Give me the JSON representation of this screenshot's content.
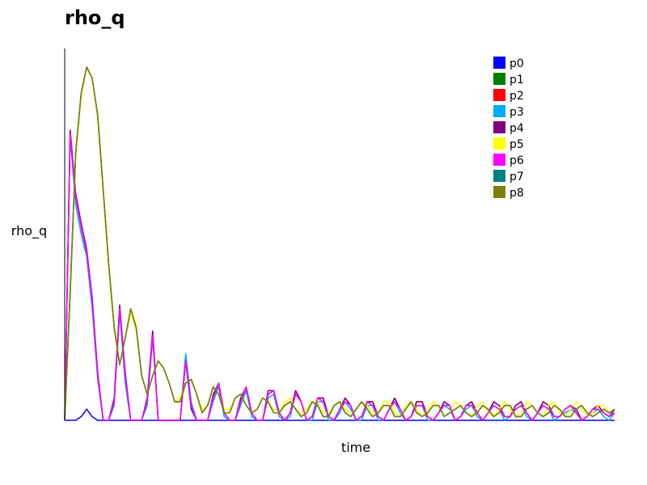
{
  "chart_data": {
    "type": "line",
    "title": "rho_q",
    "xlabel": "time",
    "ylabel": "rho_q",
    "xlim": [
      0,
      100
    ],
    "ylim": [
      0,
      1
    ],
    "grid": false,
    "legend_position": "top-right",
    "x": [
      0,
      1,
      2,
      3,
      4,
      5,
      6,
      7,
      8,
      9,
      10,
      11,
      12,
      13,
      14,
      15,
      16,
      17,
      18,
      19,
      20,
      21,
      22,
      23,
      24,
      25,
      26,
      27,
      28,
      29,
      30,
      31,
      32,
      33,
      34,
      35,
      36,
      37,
      38,
      39,
      40,
      41,
      42,
      43,
      44,
      45,
      46,
      47,
      48,
      49,
      50,
      51,
      52,
      53,
      54,
      55,
      56,
      57,
      58,
      59,
      60,
      61,
      62,
      63,
      64,
      65,
      66,
      67,
      68,
      69,
      70,
      71,
      72,
      73,
      74,
      75,
      76,
      77,
      78,
      79,
      80,
      81,
      82,
      83,
      84,
      85,
      86,
      87,
      88,
      89,
      90,
      91,
      92,
      93,
      94,
      95,
      96,
      97,
      98,
      99,
      100
    ],
    "series": [
      {
        "name": "p0",
        "color": "#0000ff",
        "values": [
          0,
          0,
          0,
          0.01,
          0.03,
          0.01,
          0,
          0,
          0,
          0,
          0,
          0,
          0,
          0,
          0,
          0,
          0,
          0,
          0,
          0,
          0,
          0,
          0,
          0,
          0,
          0,
          0,
          0,
          0,
          0,
          0,
          0,
          0,
          0,
          0,
          0,
          0,
          0,
          0,
          0,
          0,
          0,
          0,
          0,
          0,
          0,
          0,
          0,
          0,
          0,
          0,
          0,
          0,
          0,
          0,
          0,
          0,
          0,
          0,
          0,
          0,
          0,
          0,
          0,
          0,
          0,
          0,
          0,
          0,
          0,
          0,
          0,
          0,
          0,
          0,
          0,
          0,
          0,
          0,
          0,
          0,
          0,
          0,
          0,
          0,
          0,
          0,
          0,
          0,
          0,
          0,
          0,
          0,
          0,
          0,
          0,
          0,
          0,
          0,
          0,
          0
        ]
      },
      {
        "name": "p1",
        "color": "#008000",
        "values": [
          0,
          0.35,
          0.72,
          0.88,
          0.95,
          0.92,
          0.82,
          0.62,
          0.42,
          0.25,
          0.15,
          0.22,
          0.3,
          0.25,
          0.12,
          0.07,
          0.12,
          0.16,
          0.14,
          0.1,
          0.05,
          0.05,
          0.1,
          0.11,
          0.07,
          0.02,
          0.04,
          0.09,
          0.07,
          0.02,
          0.02,
          0.06,
          0.07,
          0.04,
          0.02,
          0.03,
          0.06,
          0.05,
          0.02,
          0.02,
          0.04,
          0.05,
          0.03,
          0.01,
          0.02,
          0.05,
          0.04,
          0.01,
          0.01,
          0.04,
          0.05,
          0.02,
          0.01,
          0.03,
          0.05,
          0.03,
          0.01,
          0.02,
          0.04,
          0.04,
          0.01,
          0.01,
          0.03,
          0.05,
          0.02,
          0.01,
          0.02,
          0.04,
          0.04,
          0.01,
          0.02,
          0.03,
          0.04,
          0.02,
          0.01,
          0.02,
          0.04,
          0.03,
          0.01,
          0.02,
          0.04,
          0.04,
          0.01,
          0.01,
          0.03,
          0.04,
          0.02,
          0.01,
          0.02,
          0.04,
          0.03,
          0.01,
          0.01,
          0.03,
          0.04,
          0.02,
          0.01,
          0.02,
          0.03,
          0.02,
          0.03
        ]
      },
      {
        "name": "p2",
        "color": "#ff0000",
        "values": [
          0,
          0.78,
          0.6,
          0.52,
          0.45,
          0.32,
          0.12,
          0,
          0,
          0.05,
          0.3,
          0.12,
          0,
          0,
          0,
          0.05,
          0.24,
          0,
          0,
          0,
          0,
          0,
          0.16,
          0.04,
          0,
          0,
          0,
          0.06,
          0.1,
          0.02,
          0,
          0,
          0.05,
          0.09,
          0.02,
          0,
          0,
          0.07,
          0.08,
          0.02,
          0,
          0.02,
          0.08,
          0.05,
          0,
          0.01,
          0.06,
          0.06,
          0.01,
          0,
          0.03,
          0.06,
          0.04,
          0,
          0.01,
          0.05,
          0.05,
          0.01,
          0,
          0.03,
          0.06,
          0.03,
          0,
          0.01,
          0.05,
          0.05,
          0.01,
          0,
          0.02,
          0.05,
          0.04,
          0,
          0.01,
          0.04,
          0.05,
          0.02,
          0,
          0.02,
          0.05,
          0.04,
          0.01,
          0.01,
          0.04,
          0.05,
          0.02,
          0,
          0.02,
          0.05,
          0.04,
          0.01,
          0.01,
          0.03,
          0.04,
          0.03,
          0,
          0.01,
          0.03,
          0.04,
          0.02,
          0.01,
          0.03
        ]
      },
      {
        "name": "p3",
        "color": "#00aaff",
        "values": [
          0,
          0.76,
          0.58,
          0.5,
          0.44,
          0.3,
          0.11,
          0,
          0,
          0.04,
          0.29,
          0.1,
          0,
          0,
          0,
          0.04,
          0.22,
          0,
          0,
          0,
          0,
          0,
          0.18,
          0.05,
          0,
          0,
          0,
          0.05,
          0.09,
          0.01,
          0,
          0,
          0.04,
          0.08,
          0.01,
          0,
          0,
          0.06,
          0.07,
          0.01,
          0,
          0.01,
          0.07,
          0.05,
          0,
          0,
          0.05,
          0.05,
          0,
          0,
          0.02,
          0.05,
          0.03,
          0,
          0,
          0.04,
          0.04,
          0,
          0,
          0.03,
          0.05,
          0.02,
          0,
          0.01,
          0.04,
          0.04,
          0,
          0,
          0.02,
          0.04,
          0.03,
          0,
          0.01,
          0.03,
          0.04,
          0.01,
          0,
          0.02,
          0.04,
          0.03,
          0,
          0.01,
          0.03,
          0.04,
          0.01,
          0,
          0.02,
          0.04,
          0.03,
          0,
          0.01,
          0.02,
          0.03,
          0.02,
          0,
          0.01,
          0.02,
          0.03,
          0.01,
          0,
          0.02
        ]
      },
      {
        "name": "p4",
        "color": "#800080",
        "values": [
          0,
          0.78,
          0.61,
          0.53,
          0.46,
          0.33,
          0.13,
          0,
          0,
          0.06,
          0.31,
          0.13,
          0,
          0,
          0,
          0.06,
          0.24,
          0,
          0,
          0,
          0,
          0,
          0.16,
          0.03,
          0,
          0,
          0,
          0.07,
          0.1,
          0.02,
          0,
          0,
          0.06,
          0.09,
          0.02,
          0,
          0,
          0.08,
          0.08,
          0.02,
          0,
          0.02,
          0.08,
          0.05,
          0,
          0.01,
          0.06,
          0.06,
          0.01,
          0,
          0.03,
          0.06,
          0.04,
          0,
          0.01,
          0.05,
          0.05,
          0.01,
          0,
          0.03,
          0.06,
          0.03,
          0,
          0.01,
          0.05,
          0.05,
          0.01,
          0,
          0.02,
          0.05,
          0.04,
          0,
          0.01,
          0.04,
          0.05,
          0.02,
          0,
          0.02,
          0.05,
          0.04,
          0.01,
          0.01,
          0.04,
          0.05,
          0.02,
          0,
          0.02,
          0.05,
          0.04,
          0.01,
          0.01,
          0.03,
          0.04,
          0.03,
          0,
          0.01,
          0.03,
          0.04,
          0.02,
          0.01,
          0.03
        ]
      },
      {
        "name": "p5",
        "color": "#ffff00",
        "values": [
          0,
          0.34,
          0.71,
          0.87,
          0.95,
          0.92,
          0.81,
          0.61,
          0.41,
          0.24,
          0.15,
          0.22,
          0.29,
          0.24,
          0.12,
          0.07,
          0.12,
          0.16,
          0.14,
          0.1,
          0.05,
          0.06,
          0.1,
          0.11,
          0.07,
          0.03,
          0.04,
          0.09,
          0.07,
          0.03,
          0.03,
          0.06,
          0.07,
          0.04,
          0.02,
          0.03,
          0.06,
          0.05,
          0.03,
          0.02,
          0.05,
          0.06,
          0.03,
          0.02,
          0.03,
          0.05,
          0.05,
          0.02,
          0.02,
          0.04,
          0.05,
          0.03,
          0.02,
          0.03,
          0.05,
          0.04,
          0.02,
          0.02,
          0.05,
          0.05,
          0.02,
          0.01,
          0.04,
          0.05,
          0.03,
          0.01,
          0.03,
          0.05,
          0.04,
          0.01,
          0.02,
          0.05,
          0.04,
          0.02,
          0.01,
          0.04,
          0.05,
          0.02,
          0.01,
          0.03,
          0.05,
          0.03,
          0.01,
          0.02,
          0.05,
          0.04,
          0.02,
          0.01,
          0.04,
          0.05,
          0.02,
          0.01,
          0.03,
          0.05,
          0.03,
          0.01,
          0.02,
          0.04,
          0.04,
          0.02,
          0.03
        ]
      },
      {
        "name": "p6",
        "color": "#ff00ff",
        "values": [
          0,
          0.77,
          0.6,
          0.52,
          0.45,
          0.32,
          0.12,
          0,
          0,
          0.05,
          0.3,
          0.12,
          0,
          0,
          0,
          0.05,
          0.23,
          0,
          0,
          0,
          0,
          0,
          0.16,
          0.04,
          0,
          0,
          0,
          0.06,
          0.1,
          0.02,
          0,
          0,
          0.05,
          0.09,
          0.02,
          0,
          0,
          0.07,
          0.08,
          0.02,
          0,
          0.02,
          0.07,
          0.05,
          0,
          0.01,
          0.06,
          0.05,
          0.01,
          0,
          0.03,
          0.05,
          0.04,
          0,
          0.01,
          0.05,
          0.04,
          0.01,
          0,
          0.03,
          0.05,
          0.03,
          0,
          0.01,
          0.04,
          0.04,
          0.01,
          0,
          0.02,
          0.04,
          0.04,
          0,
          0.01,
          0.04,
          0.04,
          0.02,
          0,
          0.02,
          0.04,
          0.03,
          0.01,
          0.01,
          0.03,
          0.04,
          0.02,
          0,
          0.02,
          0.04,
          0.03,
          0.01,
          0.01,
          0.03,
          0.04,
          0.02,
          0,
          0.01,
          0.03,
          0.03,
          0.02,
          0.01,
          0.02
        ]
      },
      {
        "name": "p7",
        "color": "#008080",
        "values": [
          0,
          0.34,
          0.72,
          0.88,
          0.95,
          0.92,
          0.82,
          0.62,
          0.42,
          0.25,
          0.15,
          0.22,
          0.3,
          0.25,
          0.12,
          0.07,
          0.12,
          0.16,
          0.14,
          0.1,
          0.05,
          0.05,
          0.1,
          0.11,
          0.07,
          0.02,
          0.04,
          0.09,
          0.07,
          0.02,
          0.02,
          0.06,
          0.07,
          0.04,
          0.02,
          0.03,
          0.06,
          0.05,
          0.02,
          0.02,
          0.04,
          0.05,
          0.03,
          0.01,
          0.02,
          0.05,
          0.04,
          0.01,
          0.01,
          0.04,
          0.05,
          0.02,
          0.01,
          0.03,
          0.05,
          0.03,
          0.01,
          0.02,
          0.04,
          0.04,
          0.01,
          0.01,
          0.03,
          0.05,
          0.02,
          0.01,
          0.02,
          0.04,
          0.04,
          0.01,
          0.02,
          0.03,
          0.04,
          0.02,
          0.01,
          0.02,
          0.04,
          0.03,
          0.01,
          0.02,
          0.04,
          0.04,
          0.01,
          0.01,
          0.03,
          0.04,
          0.02,
          0.01,
          0.02,
          0.04,
          0.03,
          0.01,
          0.01,
          0.03,
          0.04,
          0.02,
          0.01,
          0.02,
          0.03,
          0.02,
          0.03
        ]
      },
      {
        "name": "p8",
        "color": "#808000",
        "values": [
          0,
          0.35,
          0.72,
          0.88,
          0.95,
          0.92,
          0.82,
          0.62,
          0.42,
          0.25,
          0.15,
          0.22,
          0.3,
          0.25,
          0.12,
          0.07,
          0.12,
          0.16,
          0.14,
          0.1,
          0.05,
          0.05,
          0.1,
          0.11,
          0.07,
          0.02,
          0.04,
          0.09,
          0.07,
          0.02,
          0.02,
          0.06,
          0.07,
          0.04,
          0.02,
          0.03,
          0.06,
          0.05,
          0.02,
          0.02,
          0.04,
          0.05,
          0.03,
          0.01,
          0.02,
          0.05,
          0.04,
          0.01,
          0.01,
          0.04,
          0.05,
          0.02,
          0.01,
          0.03,
          0.05,
          0.03,
          0.01,
          0.02,
          0.04,
          0.04,
          0.01,
          0.01,
          0.03,
          0.05,
          0.02,
          0.01,
          0.02,
          0.04,
          0.04,
          0.01,
          0.02,
          0.03,
          0.04,
          0.02,
          0.01,
          0.02,
          0.04,
          0.03,
          0.01,
          0.02,
          0.04,
          0.04,
          0.01,
          0.01,
          0.03,
          0.04,
          0.02,
          0.01,
          0.02,
          0.04,
          0.03,
          0.01,
          0.01,
          0.03,
          0.04,
          0.02,
          0.01,
          0.02,
          0.03,
          0.02,
          0.03
        ]
      }
    ]
  }
}
